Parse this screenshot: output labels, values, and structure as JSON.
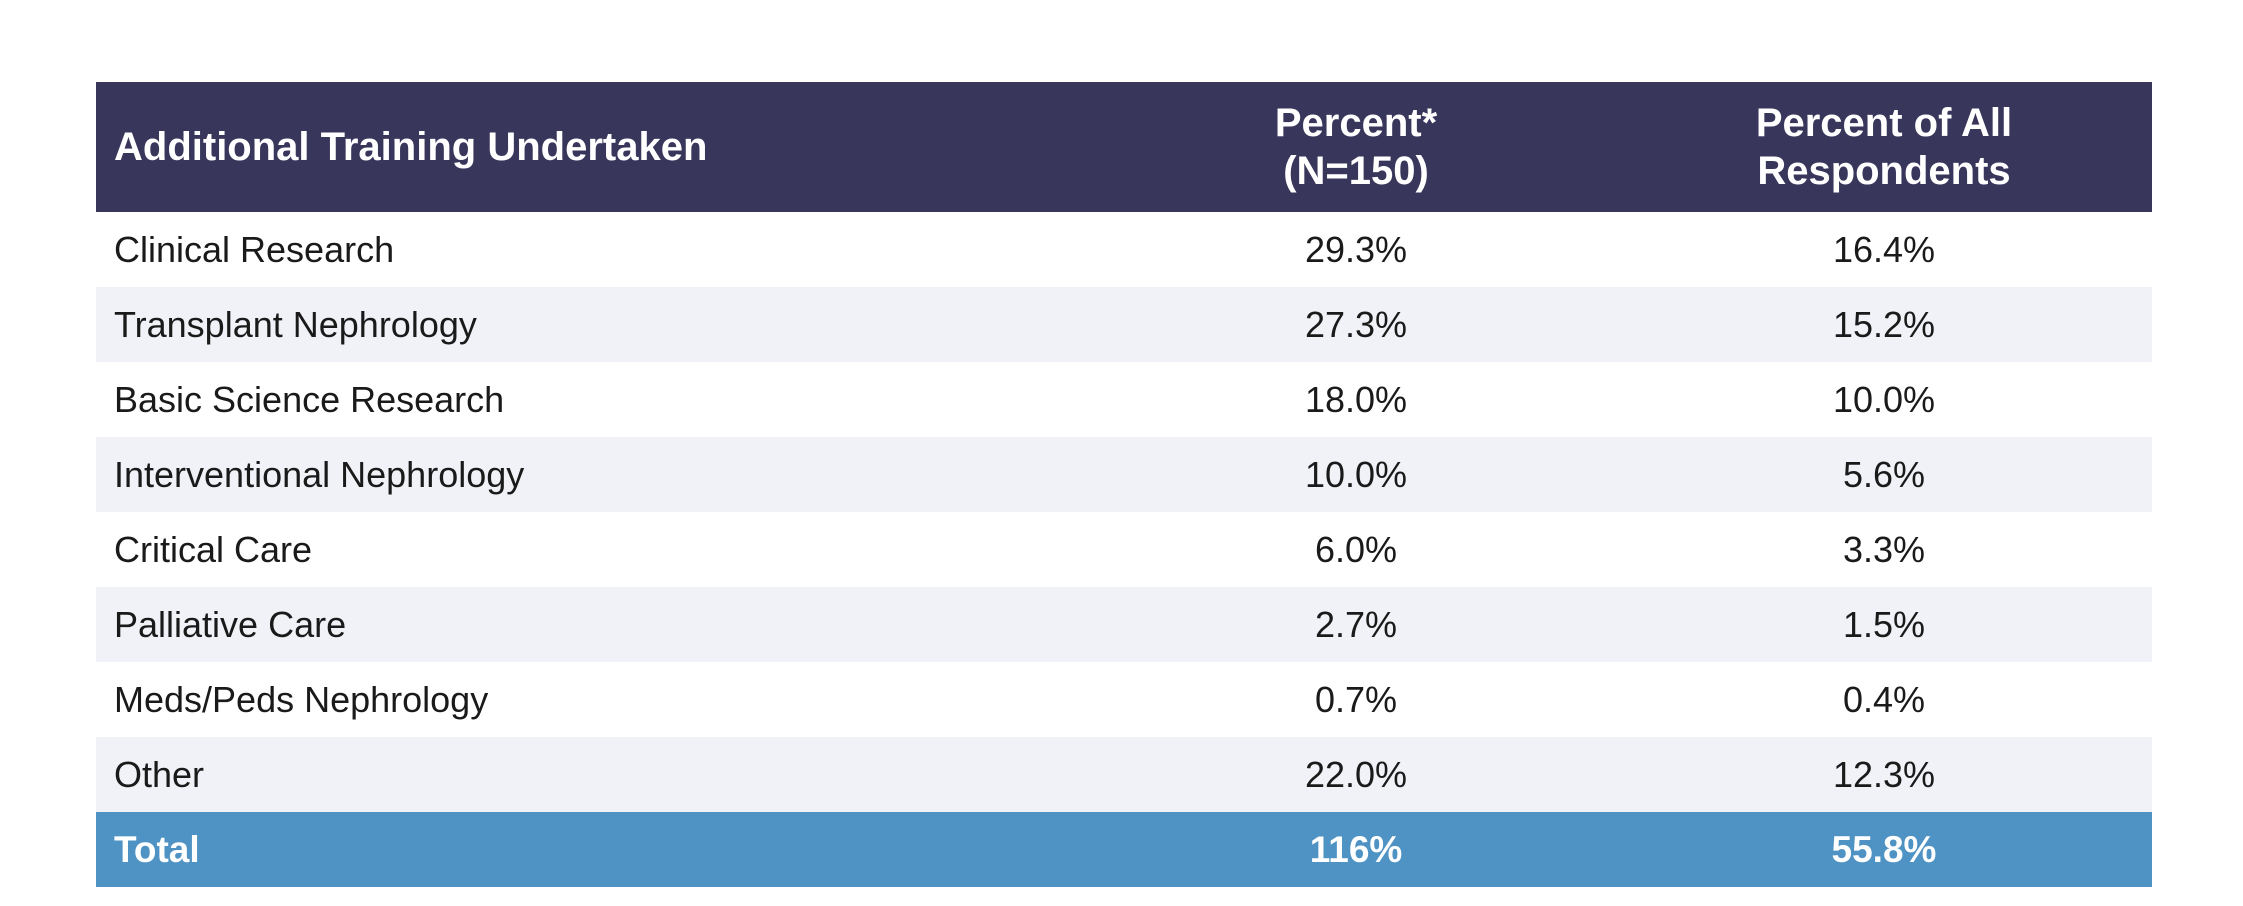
{
  "colors": {
    "header_bg": "#39365b",
    "alt_row_bg": "#f0f2f8",
    "total_bg": "#4e93c4",
    "header_text": "#ffffff"
  },
  "chart_data": {
    "type": "table",
    "columns": [
      {
        "label": "Additional Training Undertaken"
      },
      {
        "label_lines": [
          "Percent*",
          "(N=150)"
        ]
      },
      {
        "label_lines": [
          "Percent of All",
          "Respondents"
        ]
      }
    ],
    "rows": [
      {
        "category": "Clinical Research",
        "percent": "29.3%",
        "percent_all": "16.4%"
      },
      {
        "category": "Transplant Nephrology",
        "percent": "27.3%",
        "percent_all": "15.2%"
      },
      {
        "category": "Basic Science Research",
        "percent": "18.0%",
        "percent_all": "10.0%"
      },
      {
        "category": "Interventional Nephrology",
        "percent": "10.0%",
        "percent_all": "5.6%"
      },
      {
        "category": "Critical Care",
        "percent": "6.0%",
        "percent_all": "3.3%"
      },
      {
        "category": "Palliative Care",
        "percent": "2.7%",
        "percent_all": "1.5%"
      },
      {
        "category": "Meds/Peds Nephrology",
        "percent": "0.7%",
        "percent_all": "0.4%"
      },
      {
        "category": "Other",
        "percent": "22.0%",
        "percent_all": "12.3%"
      }
    ],
    "total": {
      "category": "Total",
      "percent": "116%",
      "percent_all": "55.8%"
    }
  }
}
